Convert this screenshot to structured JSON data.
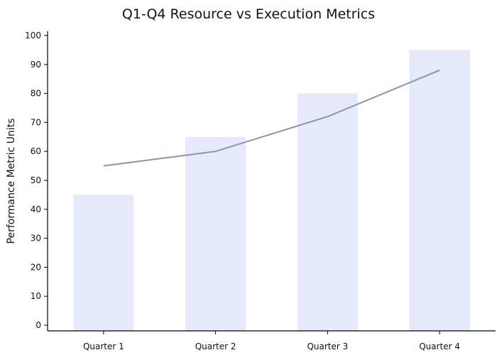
{
  "chart_data": {
    "type": "bar",
    "title": "Q1-Q4 Resource vs Execution Metrics",
    "xlabel": "",
    "ylabel": "Performance Metric Units",
    "categories": [
      "Quarter 1",
      "Quarter 2",
      "Quarter 3",
      "Quarter 4"
    ],
    "series": [
      {
        "type": "bar",
        "values": [
          45,
          65,
          80,
          95
        ],
        "color": "#e6e8fb"
      },
      {
        "type": "line",
        "values": [
          55,
          60,
          72,
          88
        ],
        "color": "#8a94a8"
      }
    ],
    "ylim": [
      0,
      100
    ],
    "yticks": [
      0,
      10,
      20,
      30,
      40,
      50,
      60,
      70,
      80,
      90,
      100
    ],
    "grid": false,
    "legend": "none"
  }
}
